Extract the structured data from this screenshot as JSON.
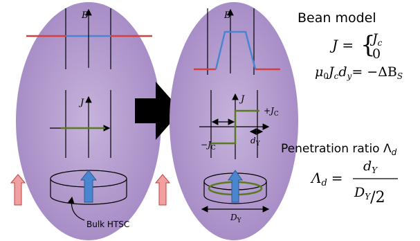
{
  "left_panel": {
    "b_axis": "B",
    "j_axis": "J",
    "sample": "Bulk HTSC"
  },
  "right_panel": {
    "b_axis": "B",
    "j_axis": "J",
    "plus_jc": [
      "+J",
      "C"
    ],
    "minus_jc": [
      "−J",
      "C"
    ],
    "dy": [
      "d",
      "Y"
    ],
    "diameter": [
      "D",
      "Y"
    ]
  },
  "bean_model": {
    "title": "Bean model",
    "lhs": "J = ",
    "upper": [
      "J",
      "c"
    ],
    "lower": "0",
    "relation": [
      "μ",
      "0",
      "J",
      "c",
      "d",
      "y",
      "= −ΔB",
      "S"
    ]
  },
  "penetration": {
    "title": [
      "Penetration ratio Λ",
      "d"
    ],
    "lhs": [
      "Λ",
      "d",
      "="
    ],
    "numerator": [
      "d",
      "Y"
    ],
    "denominator": [
      "D",
      "Y",
      "/2"
    ]
  }
}
